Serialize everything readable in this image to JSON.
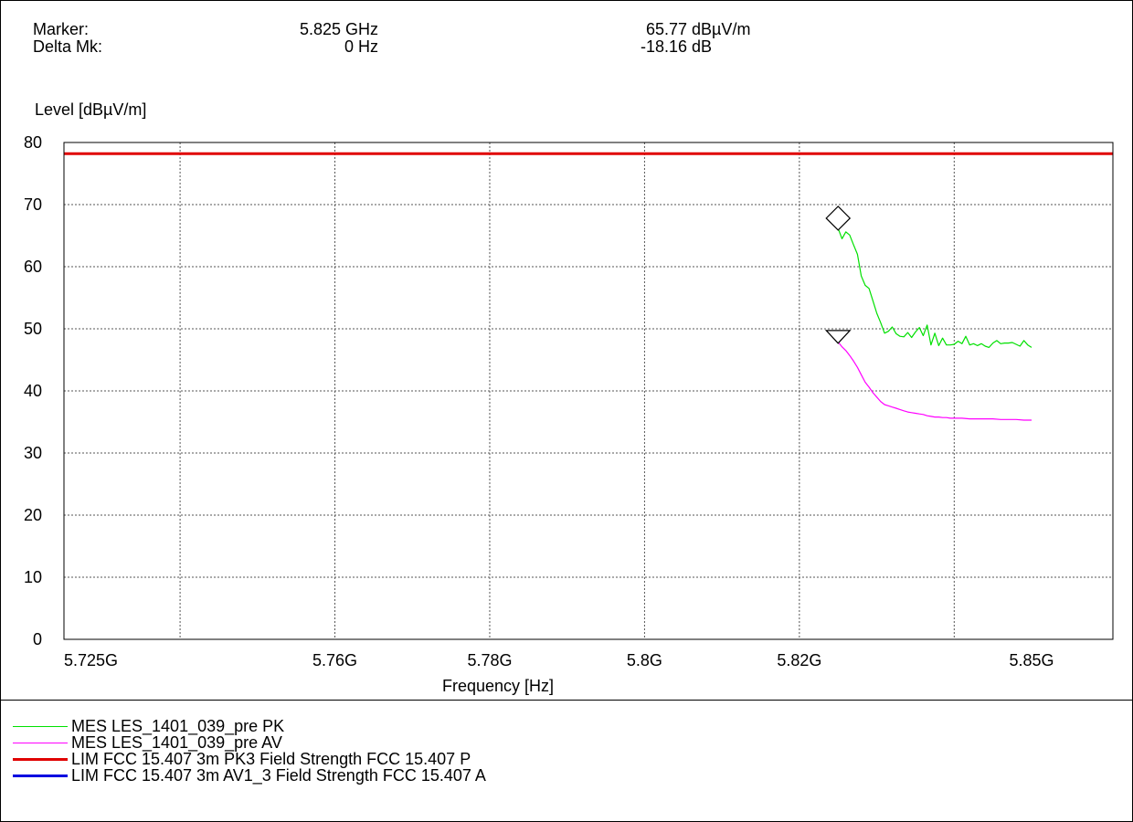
{
  "header": {
    "marker_label": "Marker:",
    "marker_freq": "5.825 GHz",
    "marker_level": "65.77 dBµV/m",
    "delta_label": "Delta Mk:",
    "delta_freq": "0 Hz",
    "delta_level": "-18.16 dB"
  },
  "chart_data": {
    "type": "line",
    "ylabel": "Level [dBµV/m]",
    "xlabel": "Frequency [Hz]",
    "ylim": [
      0,
      80
    ],
    "y_ticks": [
      0,
      10,
      20,
      30,
      40,
      50,
      60,
      70,
      80
    ],
    "x_ticks": [
      {
        "value": 5.725,
        "label": "5.725G"
      },
      {
        "value": 5.76,
        "label": "5.76G"
      },
      {
        "value": 5.78,
        "label": "5.78G"
      },
      {
        "value": 5.8,
        "label": "5.8G"
      },
      {
        "value": 5.82,
        "label": "5.82G"
      },
      {
        "value": 5.85,
        "label": "5.85G"
      }
    ],
    "grid_x_ghz": [
      5.74,
      5.76,
      5.78,
      5.8,
      5.82,
      5.84
    ],
    "x_unit": "GHz",
    "grid": true,
    "series": [
      {
        "name": "MES  LES_1401_039_pre PK",
        "color": "#00e000",
        "x": [
          5.825,
          5.8255,
          5.826,
          5.8265,
          5.827,
          5.8275,
          5.828,
          5.8285,
          5.829,
          5.8295,
          5.83,
          5.8305,
          5.831,
          5.8315,
          5.832,
          5.8325,
          5.833,
          5.8335,
          5.834,
          5.8345,
          5.835,
          5.8355,
          5.836,
          5.8365,
          5.837,
          5.8375,
          5.838,
          5.8385,
          5.839,
          5.8395,
          5.84,
          5.8405,
          5.841,
          5.8415,
          5.842,
          5.8425,
          5.843,
          5.8435,
          5.844,
          5.8445,
          5.845,
          5.8455,
          5.846,
          5.8465,
          5.847,
          5.8475,
          5.848,
          5.8485,
          5.849,
          5.8495,
          5.85
        ],
        "values": [
          66.2,
          64.5,
          65.6,
          65.1,
          63.5,
          62.0,
          58.5,
          57.0,
          56.5,
          54.5,
          52.5,
          51.0,
          49.3,
          49.6,
          50.3,
          49.2,
          48.8,
          48.7,
          49.4,
          48.6,
          49.5,
          50.2,
          48.9,
          50.6,
          47.4,
          49.3,
          47.3,
          48.5,
          47.4,
          47.4,
          47.5,
          48.0,
          47.6,
          48.8,
          47.4,
          47.6,
          47.3,
          47.6,
          47.2,
          47.0,
          47.7,
          48.1,
          47.6,
          47.7,
          47.7,
          47.8,
          47.5,
          47.2,
          48.1,
          47.4,
          47.0
        ]
      },
      {
        "name": "MES  LES_1401_039_pre AV",
        "color": "#ff00ff",
        "x": [
          5.825,
          5.8255,
          5.826,
          5.8265,
          5.827,
          5.8275,
          5.828,
          5.8285,
          5.829,
          5.8295,
          5.83,
          5.8305,
          5.831,
          5.8315,
          5.832,
          5.8325,
          5.833,
          5.8335,
          5.834,
          5.8345,
          5.835,
          5.8355,
          5.836,
          5.8365,
          5.837,
          5.8375,
          5.838,
          5.8385,
          5.839,
          5.8395,
          5.84,
          5.841,
          5.842,
          5.843,
          5.844,
          5.845,
          5.846,
          5.847,
          5.848,
          5.849,
          5.85
        ],
        "values": [
          47.9,
          47.1,
          46.5,
          45.7,
          44.8,
          43.8,
          42.6,
          41.4,
          40.6,
          39.7,
          39.0,
          38.3,
          37.8,
          37.6,
          37.4,
          37.2,
          37.0,
          36.8,
          36.6,
          36.5,
          36.4,
          36.3,
          36.2,
          36.0,
          35.9,
          35.8,
          35.8,
          35.7,
          35.7,
          35.6,
          35.6,
          35.6,
          35.5,
          35.5,
          35.5,
          35.5,
          35.4,
          35.4,
          35.4,
          35.3,
          35.3
        ]
      },
      {
        "name": "LIM  FCC 15.407 3m PK3    Field Strength FCC 15.407 P",
        "color": "#e00000",
        "x": [
          5.725,
          5.85
        ],
        "values": [
          78.2,
          78.2
        ]
      },
      {
        "name": "LIM  FCC 15.407 3m AV1_3   Field Strength FCC 15.407 A",
        "color": "#0000e0",
        "x": [],
        "values": []
      }
    ],
    "markers": [
      {
        "shape": "diamond",
        "x": 5.825,
        "y": 67.8
      },
      {
        "shape": "triangle-down",
        "x": 5.825,
        "y": 48.7
      }
    ]
  },
  "legend": [
    {
      "label": "MES  LES_1401_039_pre PK",
      "color": "#00e000",
      "thick": false
    },
    {
      "label": "MES  LES_1401_039_pre AV",
      "color": "#ff00ff",
      "thick": false
    },
    {
      "label": "LIM  FCC 15.407 3m PK3    Field Strength FCC 15.407 P",
      "color": "#e00000",
      "thick": true
    },
    {
      "label": "LIM  FCC 15.407 3m AV1_3   Field Strength FCC 15.407 A",
      "color": "#0000e0",
      "thick": true
    }
  ]
}
